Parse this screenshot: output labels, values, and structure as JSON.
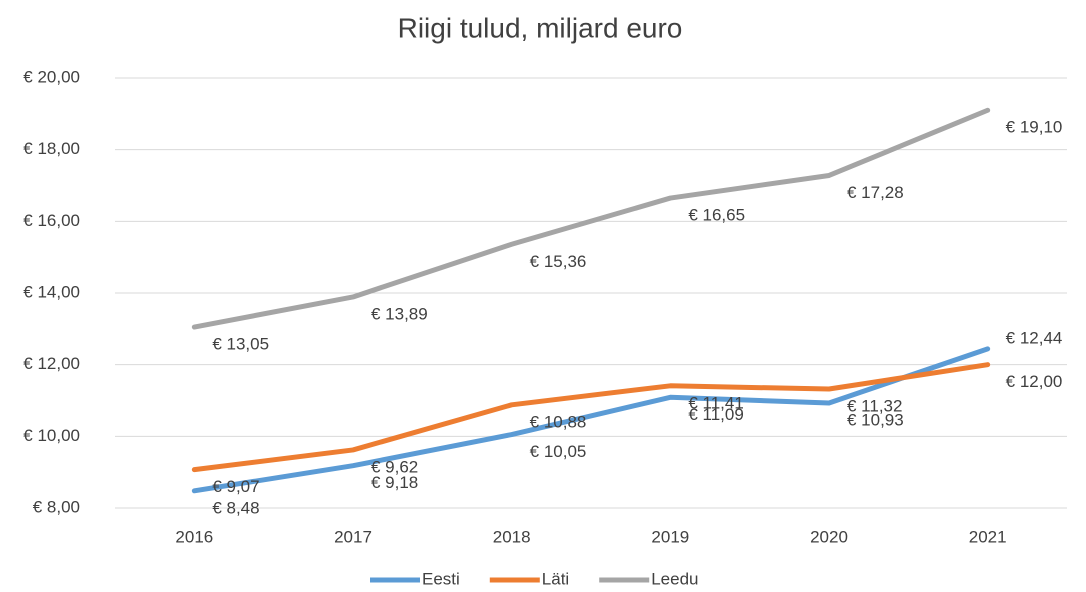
{
  "chart_data": {
    "type": "line",
    "title": "Riigi tulud, miljard euro",
    "categories": [
      "2016",
      "2017",
      "2018",
      "2019",
      "2020",
      "2021"
    ],
    "series": [
      {
        "name": "Eesti",
        "color": "#5b9bd5",
        "values": [
          8.48,
          9.18,
          10.05,
          11.09,
          10.93,
          12.44
        ],
        "value_labels": [
          "€ 8,48",
          "€ 9,18",
          "€ 10,05",
          "€ 11,09",
          "€ 10,93",
          "€ 12,44"
        ]
      },
      {
        "name": "Läti",
        "color": "#ed7d31",
        "values": [
          9.07,
          9.62,
          10.88,
          11.41,
          11.32,
          12.0
        ],
        "value_labels": [
          "€ 9,07",
          "€ 9,62",
          "€ 10,88",
          "€ 11,41",
          "€ 11,32",
          "€ 12,00"
        ]
      },
      {
        "name": "Leedu",
        "color": "#a5a5a5",
        "values": [
          13.05,
          13.89,
          15.36,
          16.65,
          17.28,
          19.1
        ],
        "value_labels": [
          "€ 13,05",
          "€ 13,89",
          "€ 15,36",
          "€ 16,65",
          "€ 17,28",
          "€ 19,10"
        ]
      }
    ],
    "ylim": [
      8,
      20
    ],
    "yticks": [
      {
        "value": 8,
        "label": "€ 8,00"
      },
      {
        "value": 10,
        "label": "€ 10,00"
      },
      {
        "value": 12,
        "label": "€ 12,00"
      },
      {
        "value": 14,
        "label": "€ 14,00"
      },
      {
        "value": 16,
        "label": "€ 16,00"
      },
      {
        "value": 18,
        "label": "€ 18,00"
      },
      {
        "value": 20,
        "label": "€ 20,00"
      }
    ],
    "grid": true,
    "legend": "bottom"
  }
}
